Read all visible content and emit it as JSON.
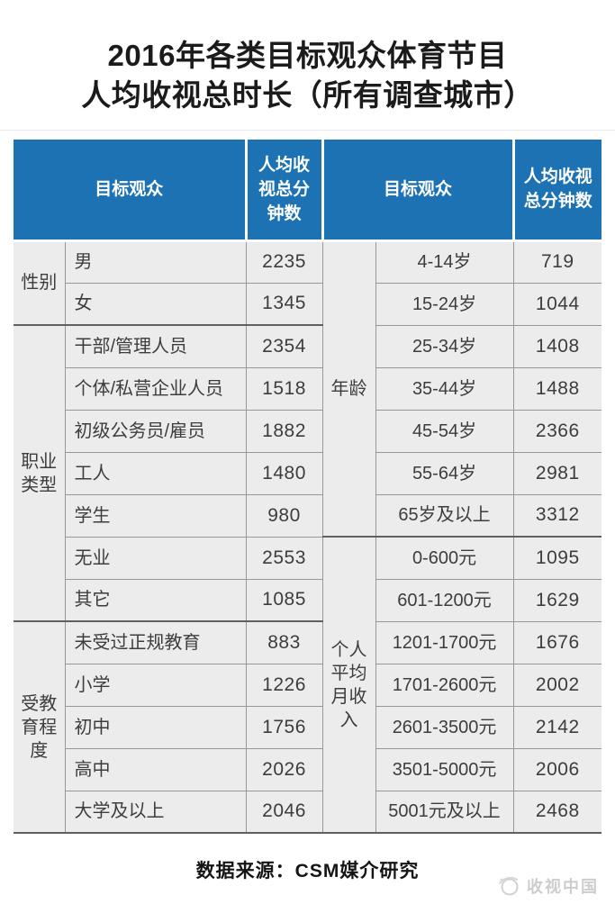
{
  "page": {
    "title_line1": "2016年各类目标观众体育节目",
    "title_line2": "人均收视总时长（所有调查城市）"
  },
  "table": {
    "header_audience_left": "目标观众",
    "header_minutes_left": "人均收视总分钟数",
    "header_audience_right": "目标观众",
    "header_minutes_right": "人均收视总分钟数",
    "left_section_indices": [
      0,
      1,
      2
    ],
    "right_section_indices": [
      3,
      4
    ]
  },
  "chart_data": {
    "type": "table",
    "title": "2016年各类目标观众体育节目人均收视总时长（所有调查城市）",
    "columns": [
      "目标观众",
      "人均收视总分钟数"
    ],
    "sections": [
      {
        "dimension": "性别",
        "rows": [
          [
            "男",
            2235
          ],
          [
            "女",
            1345
          ]
        ]
      },
      {
        "dimension": "职业类型",
        "rows": [
          [
            "干部/管理人员",
            2354
          ],
          [
            "个体/私营企业人员",
            1518
          ],
          [
            "初级公务员/雇员",
            1882
          ],
          [
            "工人",
            1480
          ],
          [
            "学生",
            980
          ],
          [
            "无业",
            2553
          ],
          [
            "其它",
            1085
          ]
        ]
      },
      {
        "dimension": "受教育程度",
        "rows": [
          [
            "未受过正规教育",
            883
          ],
          [
            "小学",
            1226
          ],
          [
            "初中",
            1756
          ],
          [
            "高中",
            2026
          ],
          [
            "大学及以上",
            2046
          ]
        ]
      },
      {
        "dimension": "年龄",
        "rows": [
          [
            "4-14岁",
            719
          ],
          [
            "15-24岁",
            1044
          ],
          [
            "25-34岁",
            1408
          ],
          [
            "35-44岁",
            1488
          ],
          [
            "45-54岁",
            2366
          ],
          [
            "55-64岁",
            2981
          ],
          [
            "65岁及以上",
            3312
          ]
        ]
      },
      {
        "dimension": "个人平均月收入",
        "rows": [
          [
            "0-600元",
            1095
          ],
          [
            "601-1200元",
            1629
          ],
          [
            "1201-1700元",
            1676
          ],
          [
            "1701-2600元",
            2002
          ],
          [
            "2601-3500元",
            2142
          ],
          [
            "3501-5000元",
            2006
          ],
          [
            "5001元及以上",
            2468
          ]
        ]
      }
    ]
  },
  "footer": {
    "source": "数据来源：CSM媒介研究",
    "watermark": "收视中国"
  },
  "colors": {
    "header_blue": "#1d72b3",
    "row_bg": "#ececec",
    "border": "#979797",
    "border_dark": "#606060",
    "text": "#3d3d3d"
  }
}
